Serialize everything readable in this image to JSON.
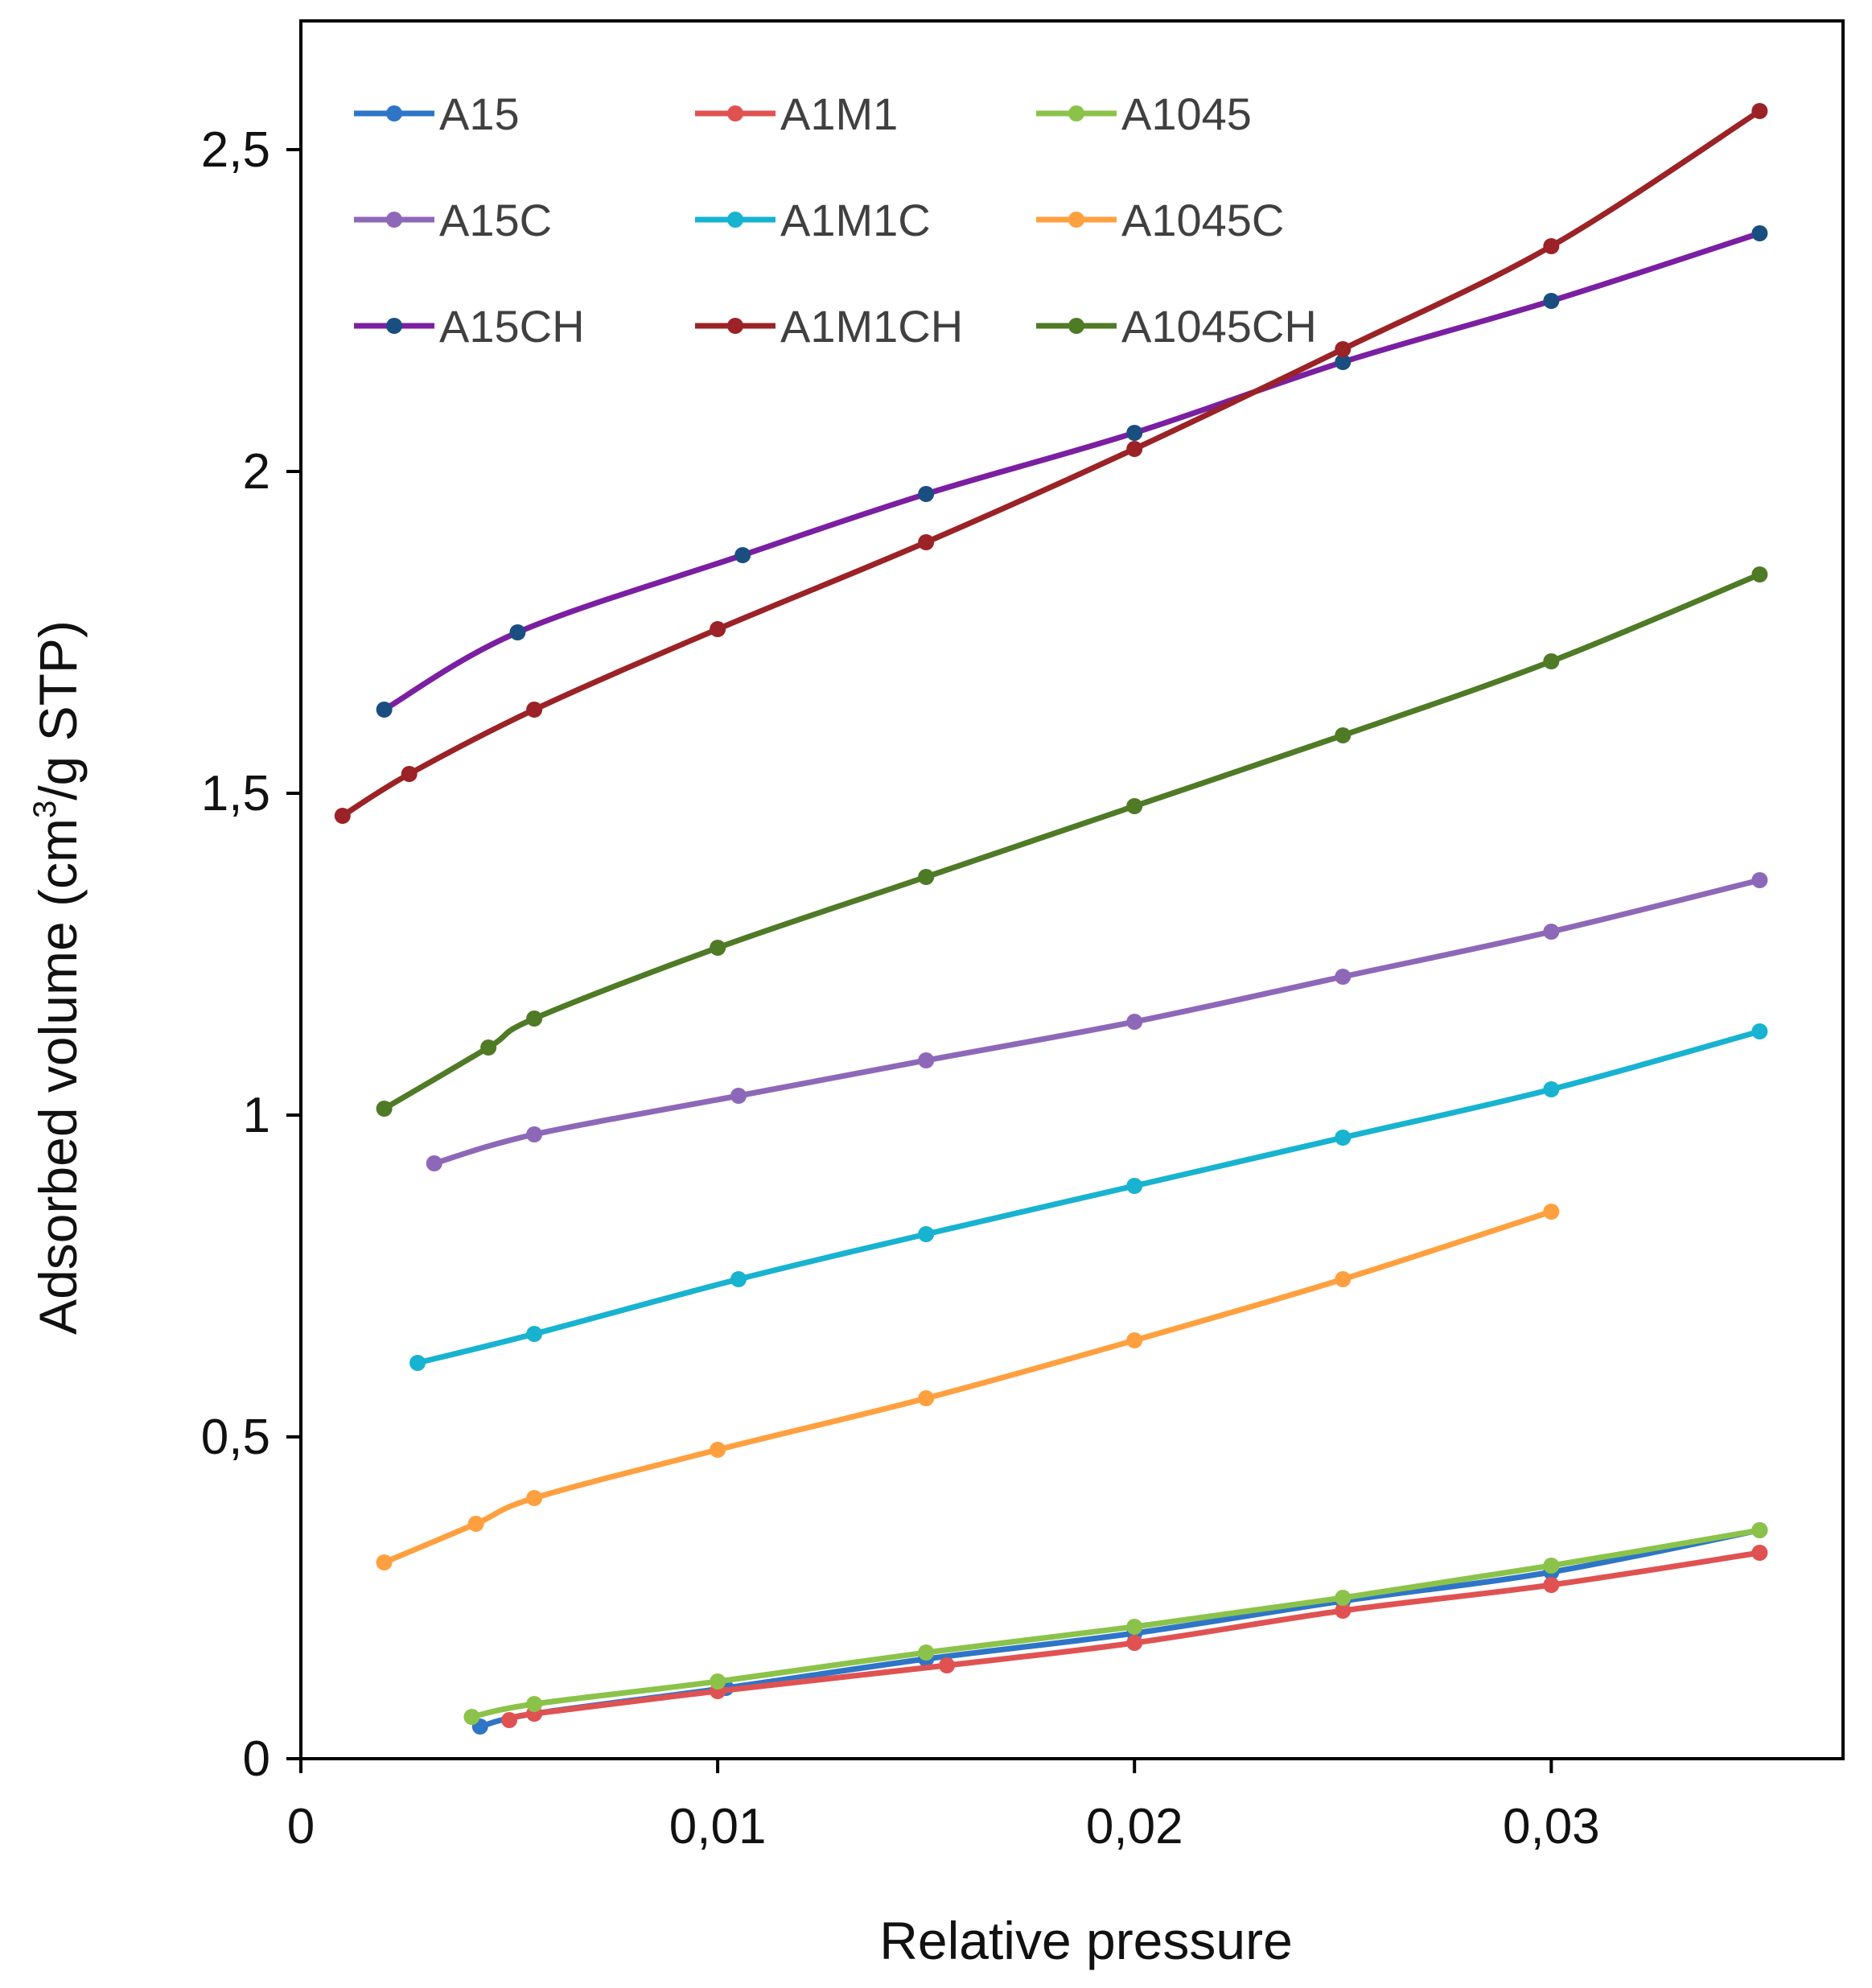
{
  "chart_data": {
    "type": "line",
    "title": "",
    "xlabel": "Relative pressure",
    "ylabel_main": "Adsorbed volume (cm",
    "ylabel_sup": "3",
    "ylabel_tail": "/g STP)",
    "xlim": [
      0,
      0.037
    ],
    "ylim": [
      0,
      2.7
    ],
    "grid": false,
    "legend_position": "top",
    "x_ticks": [
      {
        "value": 0,
        "label": "0"
      },
      {
        "value": 0.01,
        "label": "0,01"
      },
      {
        "value": 0.02,
        "label": "0,02"
      },
      {
        "value": 0.03,
        "label": "0,03"
      }
    ],
    "y_ticks": [
      {
        "value": 0,
        "label": "0"
      },
      {
        "value": 0.5,
        "label": "0,5"
      },
      {
        "value": 1,
        "label": "1"
      },
      {
        "value": 1.5,
        "label": "1,5"
      },
      {
        "value": 2,
        "label": "2"
      },
      {
        "value": 2.5,
        "label": "2,5"
      }
    ],
    "series": [
      {
        "name": "A15",
        "color": "#2E75C8",
        "marker_color": "#2E75C8",
        "x": [
          0.0043,
          0.0056,
          0.0102,
          0.015,
          0.02,
          0.025,
          0.03,
          0.035
        ],
        "y": [
          0.05,
          0.07,
          0.11,
          0.155,
          0.195,
          0.245,
          0.29,
          0.355
        ]
      },
      {
        "name": "A1M1",
        "color": "#E05252",
        "marker_color": "#E05252",
        "x": [
          0.005,
          0.0056,
          0.01,
          0.0155,
          0.02,
          0.025,
          0.03,
          0.035
        ],
        "y": [
          0.06,
          0.07,
          0.105,
          0.145,
          0.18,
          0.23,
          0.27,
          0.32
        ]
      },
      {
        "name": "A1045",
        "color": "#8BC34A",
        "marker_color": "#8BC34A",
        "x": [
          0.0041,
          0.0056,
          0.01,
          0.015,
          0.02,
          0.025,
          0.03,
          0.035
        ],
        "y": [
          0.065,
          0.085,
          0.12,
          0.165,
          0.205,
          0.25,
          0.3,
          0.355
        ]
      },
      {
        "name": "A15C",
        "color": "#8E68B8",
        "marker_color": "#8E68B8",
        "x": [
          0.0032,
          0.0056,
          0.0105,
          0.015,
          0.02,
          0.025,
          0.03,
          0.035
        ],
        "y": [
          0.925,
          0.97,
          1.03,
          1.085,
          1.145,
          1.215,
          1.285,
          1.365
        ]
      },
      {
        "name": "A1M1C",
        "color": "#17B3D0",
        "marker_color": "#17B3D0",
        "x": [
          0.0028,
          0.0056,
          0.0105,
          0.015,
          0.02,
          0.025,
          0.03,
          0.035
        ],
        "y": [
          0.615,
          0.66,
          0.745,
          0.815,
          0.89,
          0.965,
          1.04,
          1.13
        ]
      },
      {
        "name": "A1045C",
        "color": "#FFA040",
        "marker_color": "#FFA040",
        "x": [
          0.002,
          0.0042,
          0.0056,
          0.01,
          0.015,
          0.02,
          0.025,
          0.03
        ],
        "y": [
          0.305,
          0.365,
          0.405,
          0.48,
          0.56,
          0.65,
          0.745,
          0.85
        ]
      },
      {
        "name": "A15CH",
        "color": "#7B1FA2",
        "marker_color": "#1A4E80",
        "x": [
          0.002,
          0.0052,
          0.0106,
          0.015,
          0.02,
          0.025,
          0.03,
          0.035
        ],
        "y": [
          1.63,
          1.75,
          1.87,
          1.965,
          2.06,
          2.17,
          2.265,
          2.37
        ]
      },
      {
        "name": "A1M1CH",
        "color": "#9B2226",
        "marker_color": "#9B2226",
        "x": [
          0.001,
          0.0026,
          0.0056,
          0.01,
          0.015,
          0.02,
          0.025,
          0.03,
          0.035
        ],
        "y": [
          1.465,
          1.53,
          1.63,
          1.755,
          1.89,
          2.035,
          2.19,
          2.35,
          2.56
        ]
      },
      {
        "name": "A1045CH",
        "color": "#4F7A26",
        "marker_color": "#4F7A26",
        "x": [
          0.002,
          0.0045,
          0.0056,
          0.01,
          0.015,
          0.02,
          0.025,
          0.03,
          0.035
        ],
        "y": [
          1.01,
          1.105,
          1.15,
          1.26,
          1.37,
          1.48,
          1.59,
          1.705,
          1.84
        ]
      }
    ]
  }
}
